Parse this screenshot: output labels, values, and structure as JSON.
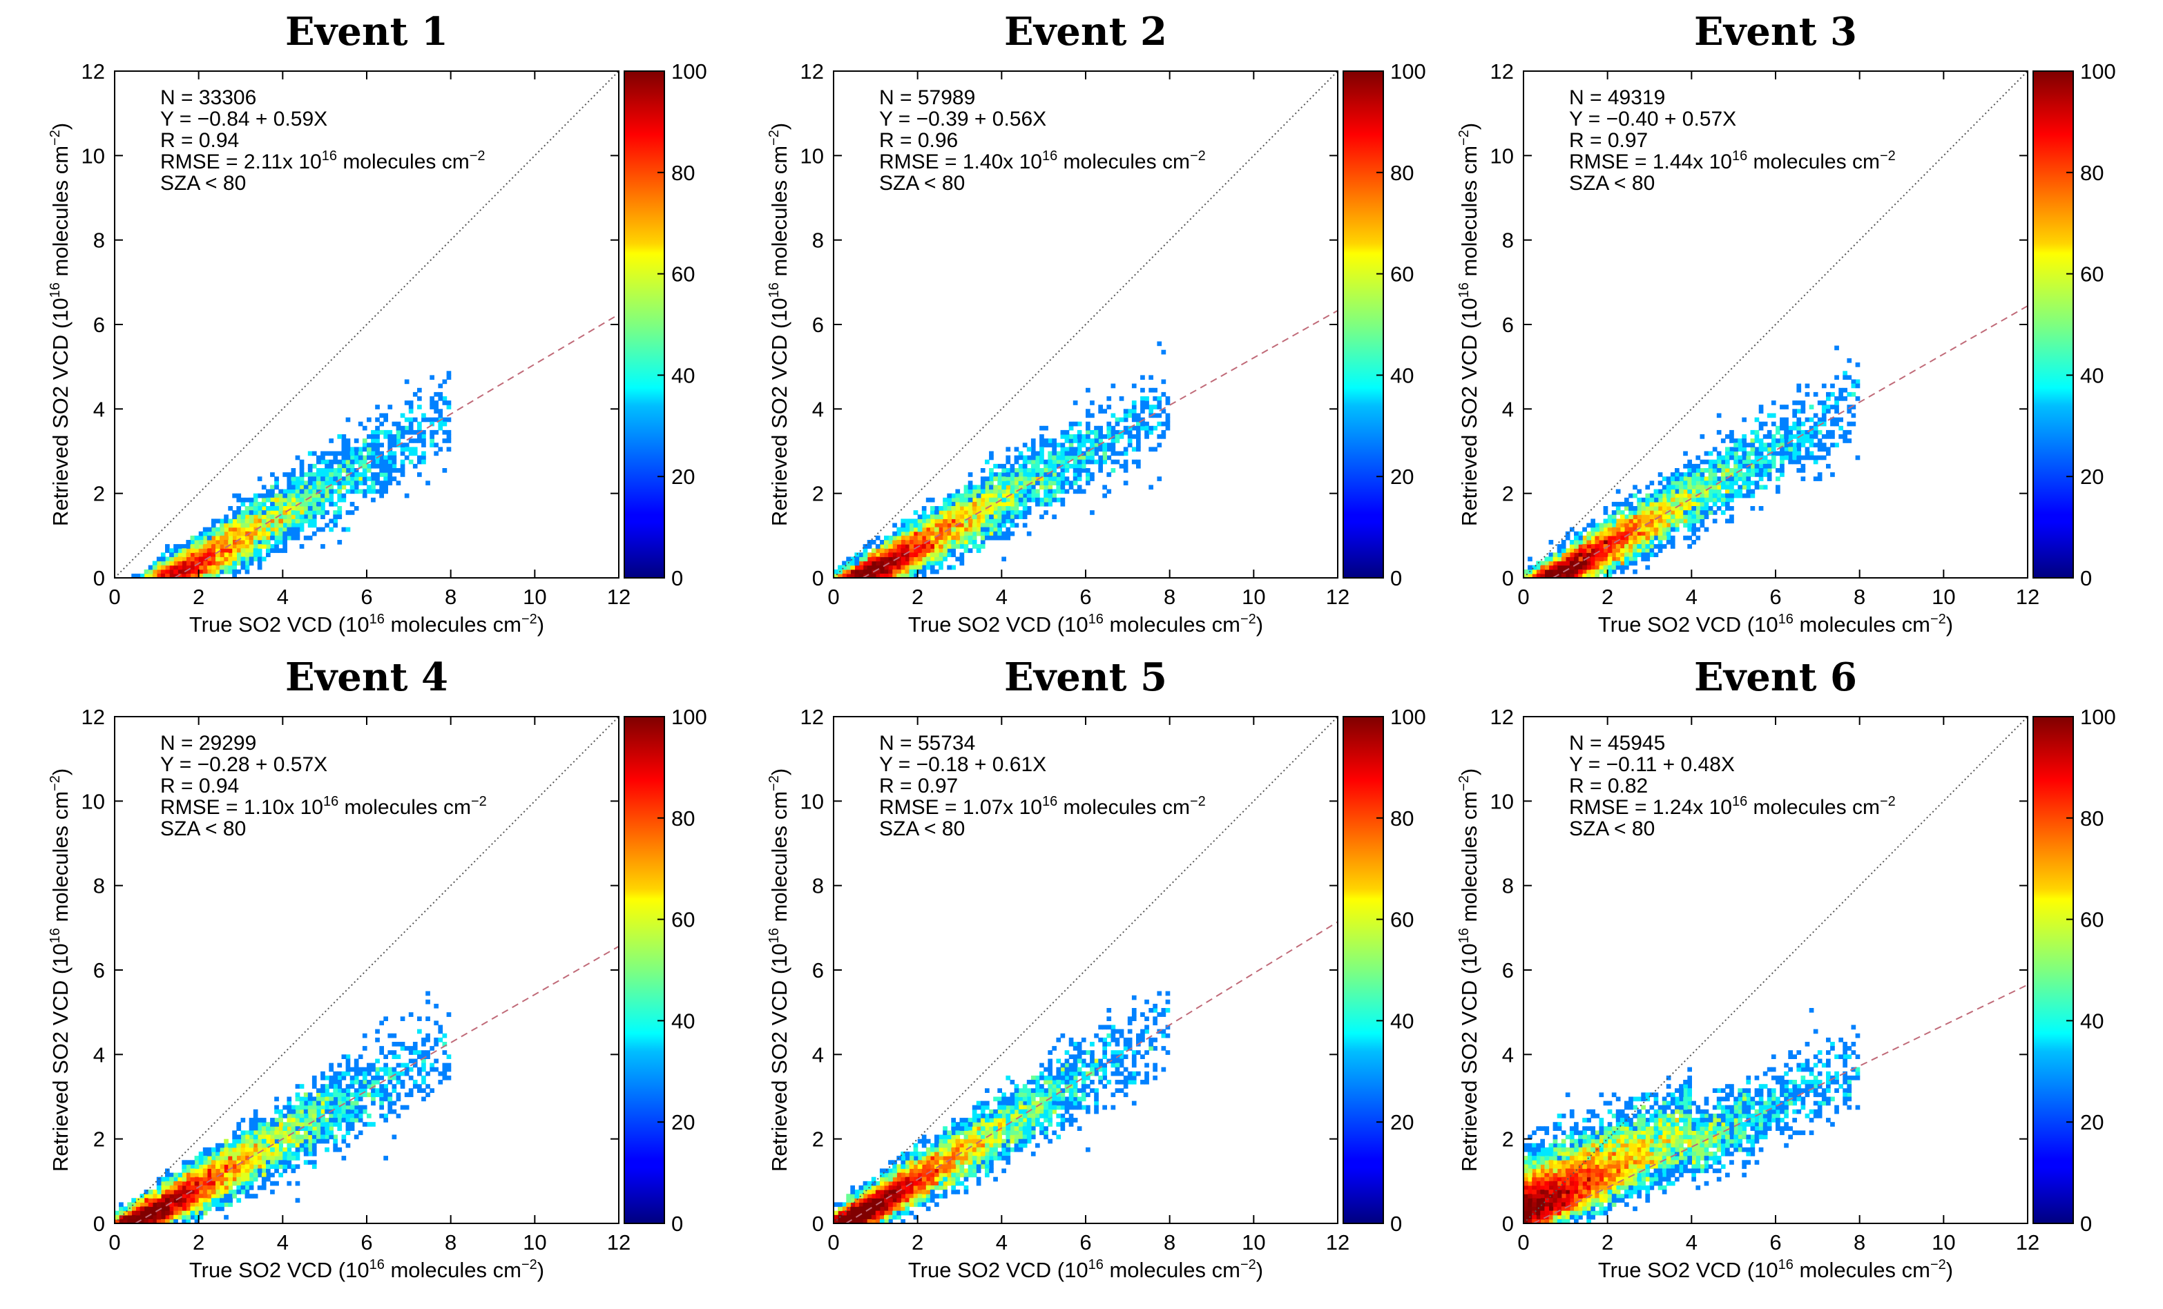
{
  "chart_data": [
    {
      "type": "heatmap",
      "title": "Event 1",
      "xlabel": {
        "pre": "True SO2 VCD (10",
        "sup": "16",
        "post": " molecules cm",
        "sup2": "−2",
        "end": ")"
      },
      "ylabel": {
        "pre": "Retrieved SO2 VCD (10",
        "sup": "16",
        "post": " molecules cm",
        "sup2": "−2",
        "end": ")"
      },
      "xlim": [
        0,
        12
      ],
      "ylim": [
        0,
        12
      ],
      "xticks": [
        "0",
        "2",
        "4",
        "6",
        "8",
        "10",
        "12"
      ],
      "yticks": [
        "0",
        "2",
        "4",
        "6",
        "8",
        "10",
        "12"
      ],
      "colorbar": {
        "range": [
          0,
          100
        ],
        "ticks": [
          "0",
          "20",
          "40",
          "60",
          "80",
          "100"
        ]
      },
      "stats": {
        "n": "N =  33306",
        "fit": "Y = −0.84 + 0.59X",
        "r": "R = 0.94",
        "rmse_pre": "RMSE = 2.11x 10",
        "rmse_sup": "16",
        "rmse_post": " molecules cm",
        "rmse_sup2": "−2",
        "sza": "SZA < 80"
      },
      "fit_line": {
        "intercept": -0.84,
        "slope": 0.59
      },
      "one_to_one": true
    },
    {
      "type": "heatmap",
      "title": "Event 2",
      "xlabel": {
        "pre": "True SO2 VCD (10",
        "sup": "16",
        "post": " molecules cm",
        "sup2": "−2",
        "end": ")"
      },
      "ylabel": {
        "pre": "Retrieved SO2 VCD (10",
        "sup": "16",
        "post": " molecules cm",
        "sup2": "−2",
        "end": ")"
      },
      "xlim": [
        0,
        12
      ],
      "ylim": [
        0,
        12
      ],
      "xticks": [
        "0",
        "2",
        "4",
        "6",
        "8",
        "10",
        "12"
      ],
      "yticks": [
        "0",
        "2",
        "4",
        "6",
        "8",
        "10",
        "12"
      ],
      "colorbar": {
        "range": [
          0,
          100
        ],
        "ticks": [
          "0",
          "20",
          "40",
          "60",
          "80",
          "100"
        ]
      },
      "stats": {
        "n": "N =  57989",
        "fit": "Y = −0.39 + 0.56X",
        "r": "R = 0.96",
        "rmse_pre": "RMSE = 1.40x 10",
        "rmse_sup": "16",
        "rmse_post": " molecules cm",
        "rmse_sup2": "−2",
        "sza": "SZA < 80"
      },
      "fit_line": {
        "intercept": -0.39,
        "slope": 0.56
      },
      "one_to_one": true
    },
    {
      "type": "heatmap",
      "title": "Event 3",
      "xlabel": {
        "pre": "True SO2 VCD (10",
        "sup": "16",
        "post": " molecules cm",
        "sup2": "−2",
        "end": ")"
      },
      "ylabel": {
        "pre": "Retrieved SO2 VCD (10",
        "sup": "16",
        "post": " molecules cm",
        "sup2": "−2",
        "end": ")"
      },
      "xlim": [
        0,
        12
      ],
      "ylim": [
        0,
        12
      ],
      "xticks": [
        "0",
        "2",
        "4",
        "6",
        "8",
        "10",
        "12"
      ],
      "yticks": [
        "0",
        "2",
        "4",
        "6",
        "8",
        "10",
        "12"
      ],
      "colorbar": {
        "range": [
          0,
          100
        ],
        "ticks": [
          "0",
          "20",
          "40",
          "60",
          "80",
          "100"
        ]
      },
      "stats": {
        "n": "N =  49319",
        "fit": "Y = −0.40 + 0.57X",
        "r": "R = 0.97",
        "rmse_pre": "RMSE = 1.44x 10",
        "rmse_sup": "16",
        "rmse_post": " molecules cm",
        "rmse_sup2": "−2",
        "sza": "SZA < 80"
      },
      "fit_line": {
        "intercept": -0.4,
        "slope": 0.57
      },
      "one_to_one": true
    },
    {
      "type": "heatmap",
      "title": "Event 4",
      "xlabel": {
        "pre": "True SO2 VCD (10",
        "sup": "16",
        "post": " molecules cm",
        "sup2": "−2",
        "end": ")"
      },
      "ylabel": {
        "pre": "Retrieved SO2 VCD (10",
        "sup": "16",
        "post": " molecules cm",
        "sup2": "−2",
        "end": ")"
      },
      "xlim": [
        0,
        12
      ],
      "ylim": [
        0,
        12
      ],
      "xticks": [
        "0",
        "2",
        "4",
        "6",
        "8",
        "10",
        "12"
      ],
      "yticks": [
        "0",
        "2",
        "4",
        "6",
        "8",
        "10",
        "12"
      ],
      "colorbar": {
        "range": [
          0,
          100
        ],
        "ticks": [
          "0",
          "20",
          "40",
          "60",
          "80",
          "100"
        ]
      },
      "stats": {
        "n": "N =  29299",
        "fit": "Y = −0.28 + 0.57X",
        "r": "R = 0.94",
        "rmse_pre": "RMSE = 1.10x 10",
        "rmse_sup": "16",
        "rmse_post": " molecules cm",
        "rmse_sup2": "−2",
        "sza": "SZA < 80"
      },
      "fit_line": {
        "intercept": -0.28,
        "slope": 0.57
      },
      "one_to_one": true
    },
    {
      "type": "heatmap",
      "title": "Event 5",
      "xlabel": {
        "pre": "True SO2 VCD (10",
        "sup": "16",
        "post": " molecules cm",
        "sup2": "−2",
        "end": ")"
      },
      "ylabel": {
        "pre": "Retrieved SO2 VCD (10",
        "sup": "16",
        "post": " molecules cm",
        "sup2": "−2",
        "end": ")"
      },
      "xlim": [
        0,
        12
      ],
      "ylim": [
        0,
        12
      ],
      "xticks": [
        "0",
        "2",
        "4",
        "6",
        "8",
        "10",
        "12"
      ],
      "yticks": [
        "0",
        "2",
        "4",
        "6",
        "8",
        "10",
        "12"
      ],
      "colorbar": {
        "range": [
          0,
          100
        ],
        "ticks": [
          "0",
          "20",
          "40",
          "60",
          "80",
          "100"
        ]
      },
      "stats": {
        "n": "N =  55734",
        "fit": "Y = −0.18 + 0.61X",
        "r": "R = 0.97",
        "rmse_pre": "RMSE = 1.07x 10",
        "rmse_sup": "16",
        "rmse_post": " molecules cm",
        "rmse_sup2": "−2",
        "sza": "SZA < 80"
      },
      "fit_line": {
        "intercept": -0.18,
        "slope": 0.61
      },
      "one_to_one": true
    },
    {
      "type": "heatmap",
      "title": "Event 6",
      "xlabel": {
        "pre": "True SO2 VCD (10",
        "sup": "16",
        "post": " molecules cm",
        "sup2": "−2",
        "end": ")"
      },
      "ylabel": {
        "pre": "Retrieved SO2 VCD (10",
        "sup": "16",
        "post": " molecules cm",
        "sup2": "−2",
        "end": ")"
      },
      "xlim": [
        0,
        12
      ],
      "ylim": [
        0,
        12
      ],
      "xticks": [
        "0",
        "2",
        "4",
        "6",
        "8",
        "10",
        "12"
      ],
      "yticks": [
        "0",
        "2",
        "4",
        "6",
        "8",
        "10",
        "12"
      ],
      "colorbar": {
        "range": [
          0,
          100
        ],
        "ticks": [
          "0",
          "20",
          "40",
          "60",
          "80",
          "100"
        ]
      },
      "stats": {
        "n": "N =  45945",
        "fit": "Y = −0.11 + 0.48X",
        "r": "R = 0.82",
        "rmse_pre": "RMSE = 1.24x 10",
        "rmse_sup": "16",
        "rmse_post": " molecules cm",
        "rmse_sup2": "−2",
        "sza": "SZA < 80"
      },
      "fit_line": {
        "intercept": -0.11,
        "slope": 0.48
      },
      "one_to_one": true
    }
  ]
}
